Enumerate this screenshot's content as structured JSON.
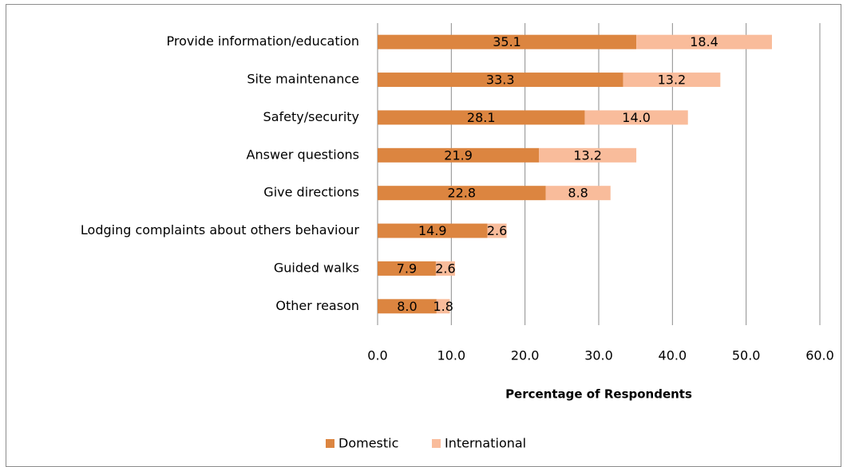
{
  "chart_data": {
    "type": "bar",
    "orientation": "horizontal",
    "stacked": true,
    "x_label": "Percentage of Respondents",
    "categories": [
      "Provide information/education",
      "Site maintenance",
      "Safety/security",
      "Answer questions",
      "Give directions",
      "Lodging complaints about others behaviour",
      "Guided walks",
      "Other reason"
    ],
    "series": [
      {
        "name": "Domestic",
        "color": "#dc8540",
        "values": [
          35.1,
          33.3,
          28.1,
          21.9,
          22.8,
          14.9,
          7.9,
          8.0
        ],
        "value_labels": [
          "35.1",
          "33.3",
          "28.1",
          "21.9",
          "22.8",
          "14.9",
          "7.9",
          "8.0"
        ]
      },
      {
        "name": "International",
        "color": "#f9bc9b",
        "values": [
          18.4,
          13.2,
          14.0,
          13.2,
          8.8,
          2.6,
          2.6,
          1.8
        ],
        "value_labels": [
          "18.4",
          "13.2",
          "14.0",
          "13.2",
          "8.8",
          "2.6",
          "2.6",
          "1.8"
        ]
      }
    ],
    "xlim": [
      0,
      60
    ],
    "xticks": [
      {
        "value": 0,
        "label": "0.0"
      },
      {
        "value": 10,
        "label": "10.0"
      },
      {
        "value": 20,
        "label": "20.0"
      },
      {
        "value": 30,
        "label": "30.0"
      },
      {
        "value": 40,
        "label": "40.0"
      },
      {
        "value": 50,
        "label": "50.0"
      },
      {
        "value": 60,
        "label": "60.0"
      }
    ],
    "grid": true,
    "legend": "bottom"
  }
}
